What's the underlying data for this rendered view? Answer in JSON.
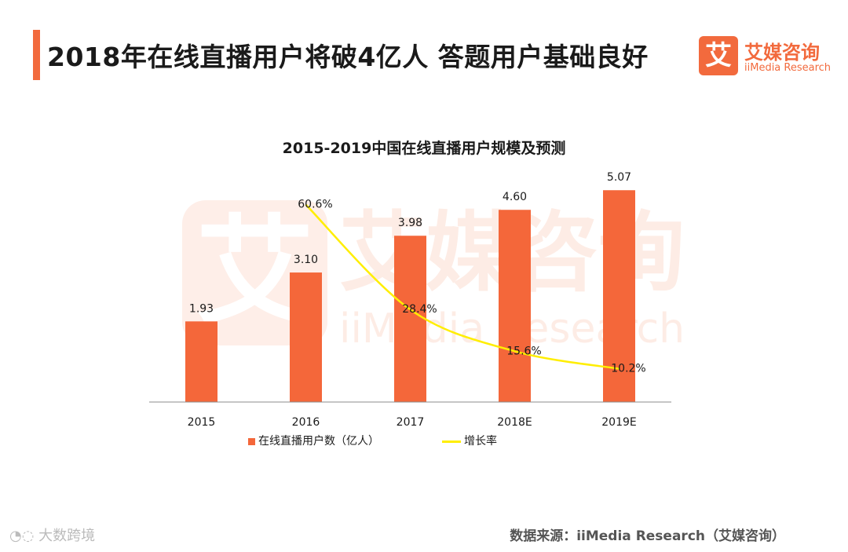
{
  "header": {
    "title": "2018年在线直播用户将破4亿人  答题用户基础良好",
    "accent_color": "#f26a3d"
  },
  "brand": {
    "icon_char": "艾",
    "name_cn": "艾媒咨询",
    "name_en": "iiMedia Research",
    "color": "#f26a3d"
  },
  "watermark": {
    "icon_char": "艾",
    "name_cn": "艾媒咨询",
    "name_en": "iiMedia Research"
  },
  "chart_data": {
    "type": "bar",
    "title": "2015-2019中国在线直播用户规模及预测",
    "categories": [
      "2015",
      "2016",
      "2017",
      "2018E",
      "2019E"
    ],
    "series": [
      {
        "name": "在线直播用户数（亿人）",
        "kind": "bar",
        "values": [
          1.93,
          3.1,
          3.98,
          4.6,
          5.07
        ],
        "labels": [
          "1.93",
          "3.10",
          "3.98",
          "4.60",
          "5.07"
        ],
        "color": "#f4673a"
      },
      {
        "name": "增长率",
        "kind": "line",
        "values": [
          null,
          60.6,
          28.4,
          15.6,
          10.2
        ],
        "labels": [
          "",
          "60.6%",
          "28.4%",
          "15.6%",
          "10.2%"
        ],
        "color": "#ffee00"
      }
    ],
    "ylim": [
      0,
      5.3
    ],
    "y2lim": [
      0,
      68
    ],
    "xlabel": "",
    "ylabel": "",
    "grid": false,
    "legend_position": "bottom"
  },
  "legend": {
    "bar_label": "在线直播用户数（亿人）",
    "line_label": "增长率"
  },
  "footer": {
    "source": "数据来源：iiMedia Research（艾媒咨询）",
    "platform_mark": "大数跨境",
    "platform_icon": "weibo-icon"
  }
}
